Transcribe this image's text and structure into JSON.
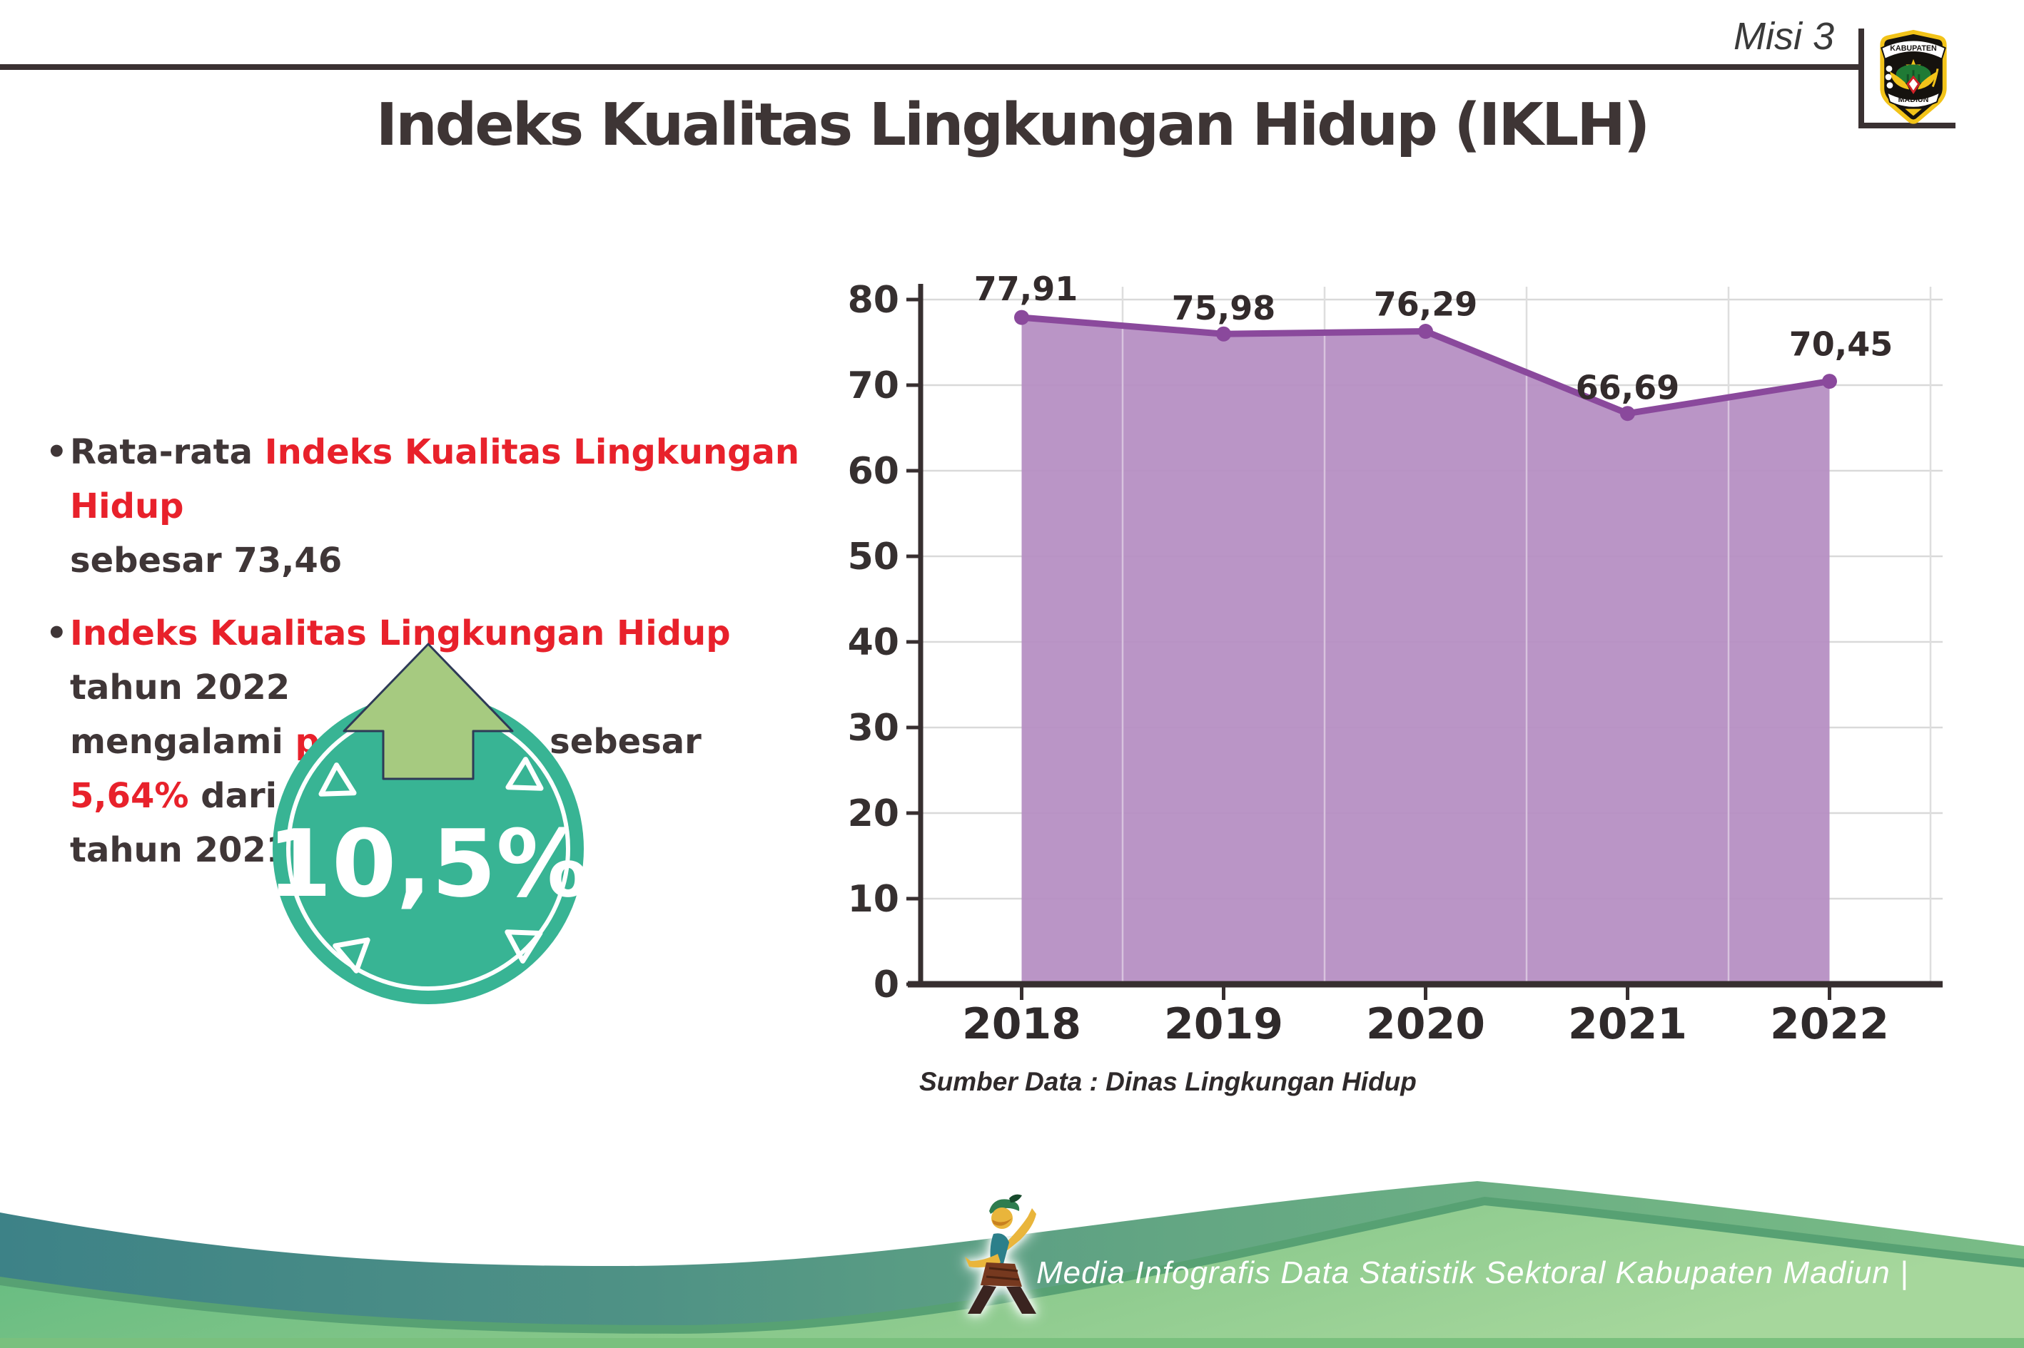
{
  "header": {
    "misi": "Misi 3",
    "title": "Indeks Kualitas Lingkungan Hidup (IKLH)",
    "logo_top": "KABUPATEN",
    "logo_bottom": "MADIUN"
  },
  "bullets": [
    {
      "lines": [
        [
          {
            "t": "Rata-rata ",
            "c": "dark"
          },
          {
            "t": "Indeks Kualitas Lingkungan Hidup",
            "c": "red"
          }
        ],
        [
          {
            "t": "sebesar 73,46",
            "c": "dark"
          }
        ]
      ]
    },
    {
      "lines": [
        [
          {
            "t": "Indeks Kualitas Lingkungan Hidup",
            "c": "red"
          },
          {
            "t": " tahun 2022",
            "c": "dark"
          }
        ],
        [
          {
            "t": "mengalami ",
            "c": "dark"
          },
          {
            "t": "peningkatan",
            "c": "red"
          },
          {
            "t": " sebesar ",
            "c": "dark"
          },
          {
            "t": "5,64%",
            "c": "red"
          },
          {
            "t": " dari",
            "c": "dark"
          }
        ],
        [
          {
            "t": "tahun 2021",
            "c": "dark"
          }
        ]
      ]
    }
  ],
  "badge": {
    "value": "10,5%"
  },
  "chart_data": {
    "type": "area",
    "title": "",
    "categories": [
      "2018",
      "2019",
      "2020",
      "2021",
      "2022"
    ],
    "values": [
      77.91,
      75.98,
      76.29,
      66.69,
      70.45
    ],
    "point_labels": [
      "77,91",
      "75,98",
      "76,29",
      "66,69",
      "70,45"
    ],
    "y_ticks": [
      0,
      10,
      20,
      30,
      40,
      50,
      60,
      70,
      80
    ],
    "ylim": [
      0,
      80
    ],
    "grid": "on",
    "legend": "none",
    "fill_color": "#b58dc2",
    "line_color": "#8a499c",
    "source": "Sumber Data : Dinas Lingkungan Hidup"
  },
  "footer": {
    "credit": "Media Infografis Data Statistik Sektoral Kabupaten Madiun |"
  },
  "colors": {
    "accent_red": "#e8212b",
    "text_dark": "#3f3637",
    "badge_teal": "#38b494",
    "arrow_green": "#a6ca80",
    "footer_teal": "#3d8287",
    "footer_green": "#8cc88b"
  }
}
